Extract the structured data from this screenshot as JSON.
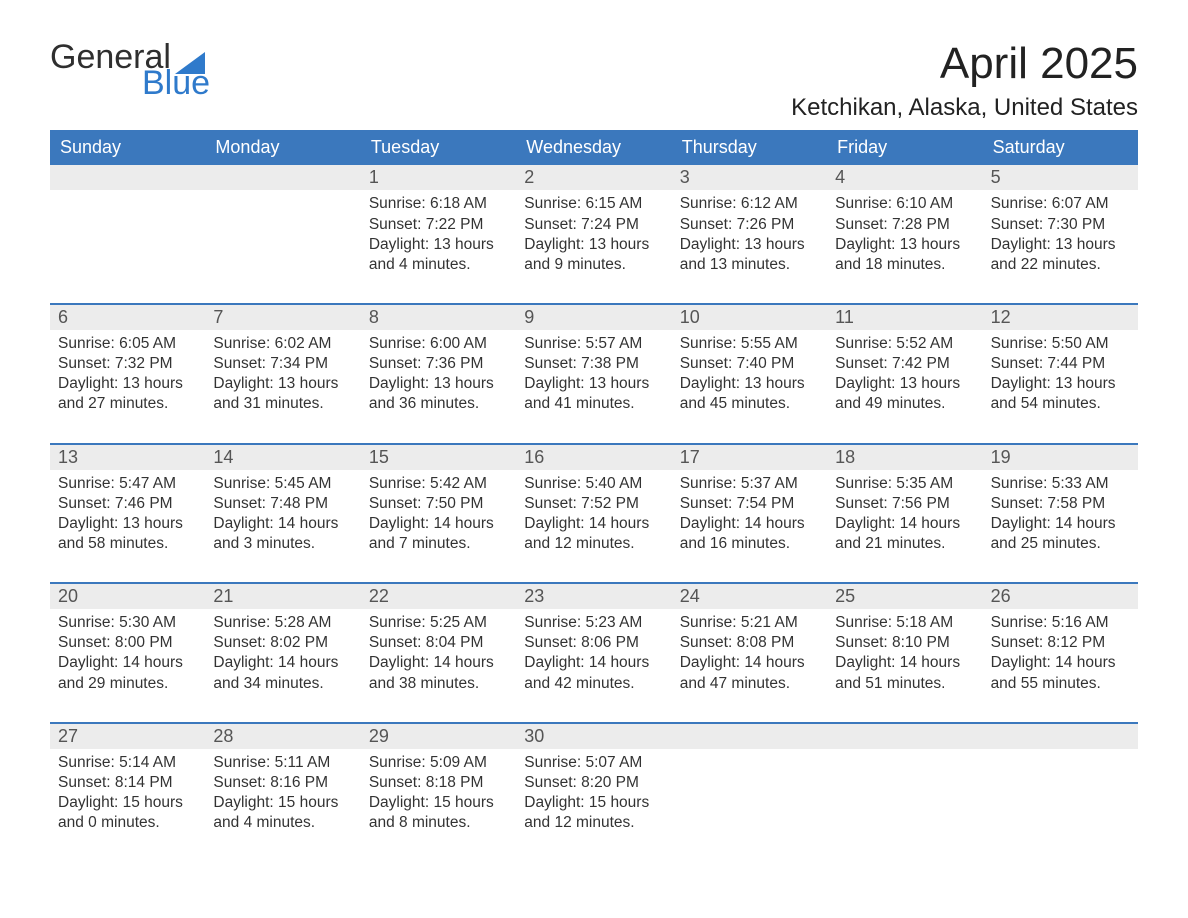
{
  "brand": {
    "word1": "General",
    "word2": "Blue",
    "accent_color": "#3b78bd"
  },
  "title": "April 2025",
  "location": "Ketchikan, Alaska, United States",
  "header_bg": "#3b78bd",
  "header_text_color": "#ffffff",
  "daynum_bg": "#ececec",
  "body_text_color": "#333333",
  "days_of_week": [
    "Sunday",
    "Monday",
    "Tuesday",
    "Wednesday",
    "Thursday",
    "Friday",
    "Saturday"
  ],
  "weeks": [
    [
      {
        "n": "",
        "sunrise": "",
        "sunset": "",
        "daylight": ""
      },
      {
        "n": "",
        "sunrise": "",
        "sunset": "",
        "daylight": ""
      },
      {
        "n": "1",
        "sunrise": "Sunrise: 6:18 AM",
        "sunset": "Sunset: 7:22 PM",
        "daylight": "Daylight: 13 hours and 4 minutes."
      },
      {
        "n": "2",
        "sunrise": "Sunrise: 6:15 AM",
        "sunset": "Sunset: 7:24 PM",
        "daylight": "Daylight: 13 hours and 9 minutes."
      },
      {
        "n": "3",
        "sunrise": "Sunrise: 6:12 AM",
        "sunset": "Sunset: 7:26 PM",
        "daylight": "Daylight: 13 hours and 13 minutes."
      },
      {
        "n": "4",
        "sunrise": "Sunrise: 6:10 AM",
        "sunset": "Sunset: 7:28 PM",
        "daylight": "Daylight: 13 hours and 18 minutes."
      },
      {
        "n": "5",
        "sunrise": "Sunrise: 6:07 AM",
        "sunset": "Sunset: 7:30 PM",
        "daylight": "Daylight: 13 hours and 22 minutes."
      }
    ],
    [
      {
        "n": "6",
        "sunrise": "Sunrise: 6:05 AM",
        "sunset": "Sunset: 7:32 PM",
        "daylight": "Daylight: 13 hours and 27 minutes."
      },
      {
        "n": "7",
        "sunrise": "Sunrise: 6:02 AM",
        "sunset": "Sunset: 7:34 PM",
        "daylight": "Daylight: 13 hours and 31 minutes."
      },
      {
        "n": "8",
        "sunrise": "Sunrise: 6:00 AM",
        "sunset": "Sunset: 7:36 PM",
        "daylight": "Daylight: 13 hours and 36 minutes."
      },
      {
        "n": "9",
        "sunrise": "Sunrise: 5:57 AM",
        "sunset": "Sunset: 7:38 PM",
        "daylight": "Daylight: 13 hours and 41 minutes."
      },
      {
        "n": "10",
        "sunrise": "Sunrise: 5:55 AM",
        "sunset": "Sunset: 7:40 PM",
        "daylight": "Daylight: 13 hours and 45 minutes."
      },
      {
        "n": "11",
        "sunrise": "Sunrise: 5:52 AM",
        "sunset": "Sunset: 7:42 PM",
        "daylight": "Daylight: 13 hours and 49 minutes."
      },
      {
        "n": "12",
        "sunrise": "Sunrise: 5:50 AM",
        "sunset": "Sunset: 7:44 PM",
        "daylight": "Daylight: 13 hours and 54 minutes."
      }
    ],
    [
      {
        "n": "13",
        "sunrise": "Sunrise: 5:47 AM",
        "sunset": "Sunset: 7:46 PM",
        "daylight": "Daylight: 13 hours and 58 minutes."
      },
      {
        "n": "14",
        "sunrise": "Sunrise: 5:45 AM",
        "sunset": "Sunset: 7:48 PM",
        "daylight": "Daylight: 14 hours and 3 minutes."
      },
      {
        "n": "15",
        "sunrise": "Sunrise: 5:42 AM",
        "sunset": "Sunset: 7:50 PM",
        "daylight": "Daylight: 14 hours and 7 minutes."
      },
      {
        "n": "16",
        "sunrise": "Sunrise: 5:40 AM",
        "sunset": "Sunset: 7:52 PM",
        "daylight": "Daylight: 14 hours and 12 minutes."
      },
      {
        "n": "17",
        "sunrise": "Sunrise: 5:37 AM",
        "sunset": "Sunset: 7:54 PM",
        "daylight": "Daylight: 14 hours and 16 minutes."
      },
      {
        "n": "18",
        "sunrise": "Sunrise: 5:35 AM",
        "sunset": "Sunset: 7:56 PM",
        "daylight": "Daylight: 14 hours and 21 minutes."
      },
      {
        "n": "19",
        "sunrise": "Sunrise: 5:33 AM",
        "sunset": "Sunset: 7:58 PM",
        "daylight": "Daylight: 14 hours and 25 minutes."
      }
    ],
    [
      {
        "n": "20",
        "sunrise": "Sunrise: 5:30 AM",
        "sunset": "Sunset: 8:00 PM",
        "daylight": "Daylight: 14 hours and 29 minutes."
      },
      {
        "n": "21",
        "sunrise": "Sunrise: 5:28 AM",
        "sunset": "Sunset: 8:02 PM",
        "daylight": "Daylight: 14 hours and 34 minutes."
      },
      {
        "n": "22",
        "sunrise": "Sunrise: 5:25 AM",
        "sunset": "Sunset: 8:04 PM",
        "daylight": "Daylight: 14 hours and 38 minutes."
      },
      {
        "n": "23",
        "sunrise": "Sunrise: 5:23 AM",
        "sunset": "Sunset: 8:06 PM",
        "daylight": "Daylight: 14 hours and 42 minutes."
      },
      {
        "n": "24",
        "sunrise": "Sunrise: 5:21 AM",
        "sunset": "Sunset: 8:08 PM",
        "daylight": "Daylight: 14 hours and 47 minutes."
      },
      {
        "n": "25",
        "sunrise": "Sunrise: 5:18 AM",
        "sunset": "Sunset: 8:10 PM",
        "daylight": "Daylight: 14 hours and 51 minutes."
      },
      {
        "n": "26",
        "sunrise": "Sunrise: 5:16 AM",
        "sunset": "Sunset: 8:12 PM",
        "daylight": "Daylight: 14 hours and 55 minutes."
      }
    ],
    [
      {
        "n": "27",
        "sunrise": "Sunrise: 5:14 AM",
        "sunset": "Sunset: 8:14 PM",
        "daylight": "Daylight: 15 hours and 0 minutes."
      },
      {
        "n": "28",
        "sunrise": "Sunrise: 5:11 AM",
        "sunset": "Sunset: 8:16 PM",
        "daylight": "Daylight: 15 hours and 4 minutes."
      },
      {
        "n": "29",
        "sunrise": "Sunrise: 5:09 AM",
        "sunset": "Sunset: 8:18 PM",
        "daylight": "Daylight: 15 hours and 8 minutes."
      },
      {
        "n": "30",
        "sunrise": "Sunrise: 5:07 AM",
        "sunset": "Sunset: 8:20 PM",
        "daylight": "Daylight: 15 hours and 12 minutes."
      },
      {
        "n": "",
        "sunrise": "",
        "sunset": "",
        "daylight": ""
      },
      {
        "n": "",
        "sunrise": "",
        "sunset": "",
        "daylight": ""
      },
      {
        "n": "",
        "sunrise": "",
        "sunset": "",
        "daylight": ""
      }
    ]
  ]
}
